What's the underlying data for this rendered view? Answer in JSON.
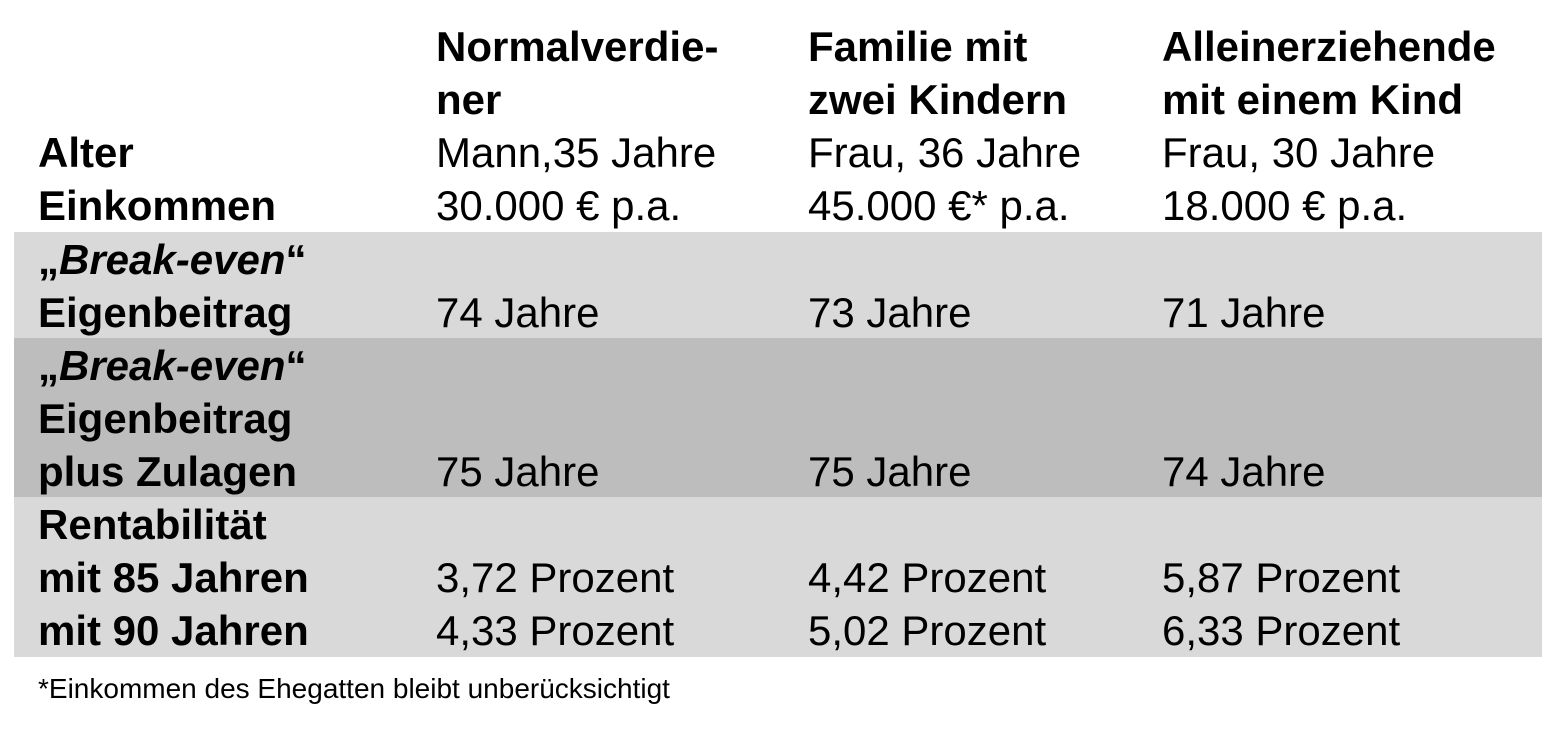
{
  "header": {
    "col1": [
      "Normalverdie-",
      "ner"
    ],
    "col2": [
      "Familie mit",
      "zwei Kindern"
    ],
    "col3": [
      "Alleinerziehende",
      "mit einem Kind"
    ]
  },
  "rows": {
    "alter": {
      "label": "Alter",
      "values": [
        "Mann,35 Jahre",
        "Frau, 36 Jahre",
        "Frau, 30 Jahre"
      ]
    },
    "einkommen": {
      "label": "Einkommen",
      "values": [
        "30.000 € p.a.",
        "45.000 €* p.a.",
        "18.000 € p.a."
      ]
    },
    "breakeven1": {
      "label_open": "„",
      "label_italic": "Break-even",
      "label_close": "“",
      "label_line2": "Eigenbeitrag",
      "values": [
        "74 Jahre",
        "73 Jahre",
        "71 Jahre"
      ]
    },
    "breakeven2": {
      "label_open": "„",
      "label_italic": "Break-even",
      "label_close": "“",
      "label_line2": "Eigenbeitrag",
      "label_line3": "plus Zulagen",
      "values": [
        "75 Jahre",
        "75 Jahre",
        "74 Jahre"
      ]
    },
    "rentabilitaet": {
      "label": "Rentabilität",
      "sub1": {
        "label": "mit 85 Jahren",
        "values": [
          "3,72 Prozent",
          "4,42 Prozent",
          "5,87 Prozent"
        ]
      },
      "sub2": {
        "label": "mit 90 Jahren",
        "values": [
          "4,33 Prozent",
          "5,02 Prozent",
          "6,33 Prozent"
        ]
      }
    }
  },
  "footnote": "*Einkommen des Ehegatten bleibt unberücksichtigt",
  "colors": {
    "band_light": "#d9d9d9",
    "band_dark": "#bdbdbd"
  }
}
